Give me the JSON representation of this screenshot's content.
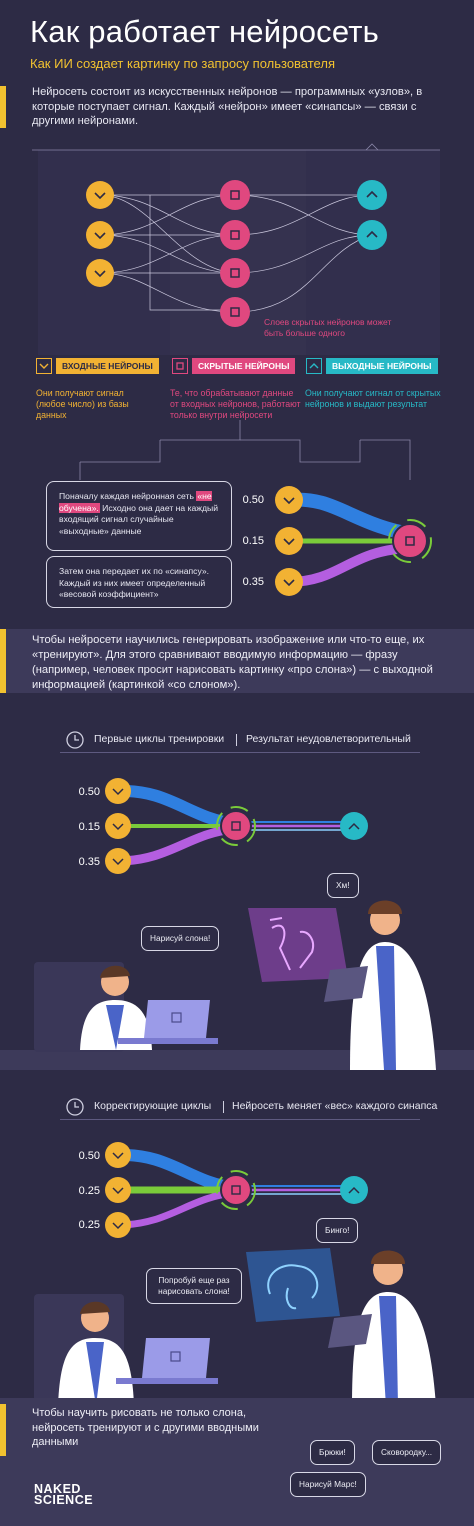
{
  "header": {
    "title": "Как работает нейросеть",
    "subtitle": "Как ИИ создает картинку по запросу пользователя"
  },
  "intro": "Нейросеть состоит из искусственных нейронов — программных «узлов», в которые поступает сигнал. Каждый «нейрон» имеет «синапсы» — связи с другими нейронами.",
  "network": {
    "hidden_layers_note": "Слоев скрытых нейронов может быть больше одного",
    "legend": [
      {
        "label": "ВХОДНЫЕ НЕЙРОНЫ",
        "color": "#f2b233"
      },
      {
        "label": "СКРЫТЫЕ НЕЙРОНЫ",
        "color": "#e0487f"
      },
      {
        "label": "ВЫХОДНЫЕ НЕЙРОНЫ",
        "color": "#27b9c6"
      }
    ],
    "column_notes": {
      "input": "Они получают сигнал (любое число) из базы данных",
      "hidden": "Те, что обрабатывают данные от входных нейронов, работают только внутри нейросети",
      "output": "Они получают сигнал от скрытых нейронов и выдают результат"
    }
  },
  "weights_explainer": {
    "bubble1_pre": "Поначалу каждая нейронная сеть",
    "bubble1_hl": "«не обучена».",
    "bubble1_post": "Исходно она дает на каждый входящий сигнал случайные «выходные» данные",
    "bubble2": "Затем она передает их по «синапсу». Каждый из них имеет определенный «весовой коэффициент»",
    "weights": [
      "0.50",
      "0.15",
      "0.35"
    ]
  },
  "training_text": "Чтобы нейросети научились генерировать изображение или что-то еще, их «тренируют». Для этого сравнивают вводимую информацию — фразу (например, человек просит нарисовать картинку «про слона») — с выходной информацией (картинкой «со слоном»).",
  "stage1": {
    "label": "Первые циклы тренировки",
    "result": "Результат неудовлетворительный",
    "weights": [
      "0.50",
      "0.15",
      "0.35"
    ],
    "speech_user": "Нарисуй слона!",
    "speech_expert": "Хм!"
  },
  "stage2": {
    "label": "Корректирующие циклы",
    "result": "Нейросеть меняет «вес» каждого синапса",
    "weights": [
      "0.50",
      "0.25",
      "0.25"
    ],
    "speech_user": "Попробуй еще раз нарисовать слона!",
    "speech_expert": "Бинго!"
  },
  "footer": {
    "text": "Чтобы научить рисовать не только слона, нейросеть тренируют и с другими вводными данными",
    "speech": [
      "Брюки!",
      "Сковородку...",
      "Нарисуй Марс!"
    ],
    "logo_line1": "NAKED",
    "logo_line2": "SCIENCE"
  },
  "colors": {
    "background": "#2d2b45",
    "accent_yellow": "#f2b233",
    "accent_pink": "#e0487f",
    "accent_cyan": "#27b9c6",
    "accent_purple": "#b45ee0",
    "accent_blue": "#2f7fe0",
    "accent_green": "#7acb3a"
  },
  "icons": [
    "chevron-down-icon",
    "square-icon",
    "chevron-up-icon",
    "clock-icon",
    "laptop-icon"
  ]
}
